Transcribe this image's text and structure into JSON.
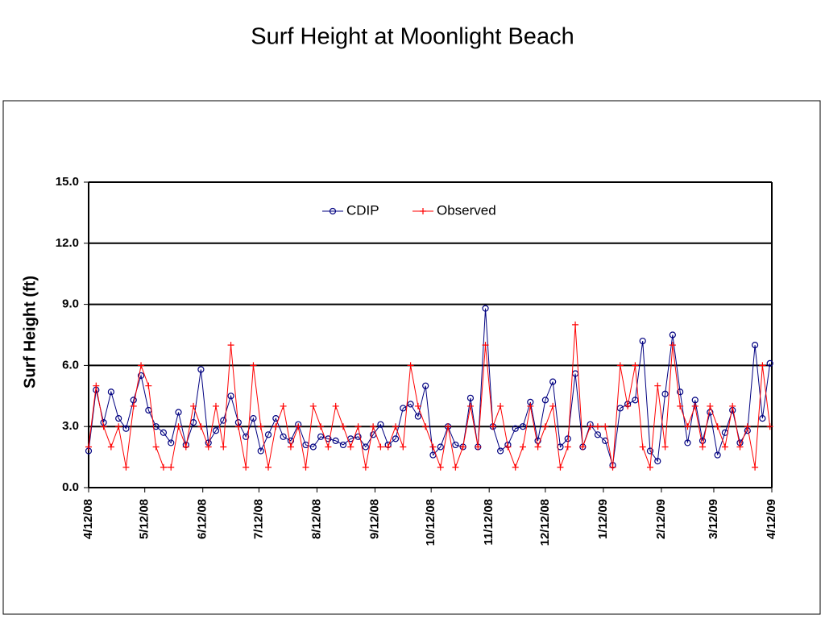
{
  "chart_data": {
    "type": "line",
    "title": "Surf Height at Moonlight Beach",
    "y_label": "Surf Height (ft)",
    "x": [
      "2008-04-12",
      "2008-04-16",
      "2008-04-20",
      "2008-04-24",
      "2008-04-28",
      "2008-05-02",
      "2008-05-06",
      "2008-05-10",
      "2008-05-14",
      "2008-05-18",
      "2008-05-22",
      "2008-05-26",
      "2008-05-30",
      "2008-06-03",
      "2008-06-07",
      "2008-06-11",
      "2008-06-15",
      "2008-06-19",
      "2008-06-23",
      "2008-06-27",
      "2008-07-01",
      "2008-07-05",
      "2008-07-09",
      "2008-07-13",
      "2008-07-17",
      "2008-07-21",
      "2008-07-25",
      "2008-07-29",
      "2008-08-02",
      "2008-08-06",
      "2008-08-10",
      "2008-08-14",
      "2008-08-18",
      "2008-08-22",
      "2008-08-26",
      "2008-08-30",
      "2008-09-03",
      "2008-09-07",
      "2008-09-11",
      "2008-09-15",
      "2008-09-19",
      "2008-09-23",
      "2008-09-27",
      "2008-10-01",
      "2008-10-05",
      "2008-10-09",
      "2008-10-13",
      "2008-10-17",
      "2008-10-21",
      "2008-10-25",
      "2008-10-29",
      "2008-11-02",
      "2008-11-06",
      "2008-11-10",
      "2008-11-14",
      "2008-11-18",
      "2008-11-22",
      "2008-11-26",
      "2008-11-30",
      "2008-12-04",
      "2008-12-08",
      "2008-12-12",
      "2008-12-16",
      "2008-12-20",
      "2008-12-24",
      "2008-12-28",
      "2009-01-01",
      "2009-01-05",
      "2009-01-09",
      "2009-01-13",
      "2009-01-17",
      "2009-01-21",
      "2009-01-25",
      "2009-01-29",
      "2009-02-02",
      "2009-02-06",
      "2009-02-10",
      "2009-02-14",
      "2009-02-18",
      "2009-02-22",
      "2009-02-26",
      "2009-03-02",
      "2009-03-06",
      "2009-03-10",
      "2009-03-14",
      "2009-03-18",
      "2009-03-22",
      "2009-03-26",
      "2009-03-30",
      "2009-04-03",
      "2009-04-07",
      "2009-04-11"
    ],
    "series": [
      {
        "name": "CDIP",
        "color": "#000080",
        "marker": "circle",
        "values": [
          1.8,
          4.8,
          3.2,
          4.7,
          3.4,
          2.9,
          4.3,
          5.5,
          3.8,
          3.0,
          2.7,
          2.2,
          3.7,
          2.1,
          3.2,
          5.8,
          2.2,
          2.8,
          3.3,
          4.5,
          3.2,
          2.5,
          3.4,
          1.8,
          2.6,
          3.4,
          2.5,
          2.3,
          3.1,
          2.1,
          2.0,
          2.5,
          2.4,
          2.3,
          2.1,
          2.4,
          2.5,
          2.0,
          2.6,
          3.1,
          2.1,
          2.4,
          3.9,
          4.1,
          3.5,
          5.0,
          1.6,
          2.0,
          3.0,
          2.1,
          2.0,
          4.4,
          2.0,
          8.8,
          3.0,
          1.8,
          2.1,
          2.9,
          3.0,
          4.2,
          2.3,
          4.3,
          5.2,
          2.0,
          2.4,
          5.6,
          2.0,
          3.1,
          2.6,
          2.3,
          1.1,
          3.9,
          4.1,
          4.3,
          7.2,
          1.8,
          1.3,
          4.6,
          7.5,
          4.7,
          2.2,
          4.3,
          2.3,
          3.7,
          1.6,
          2.7,
          3.8,
          2.2,
          2.8,
          7.0,
          3.4,
          6.1
        ]
      },
      {
        "name": "Observed",
        "color": "#ff0000",
        "marker": "plus",
        "values": [
          2,
          5,
          3,
          2,
          3,
          1,
          4,
          6,
          5,
          2,
          1,
          1,
          3,
          2,
          4,
          3,
          2,
          4,
          2,
          7,
          3,
          1,
          6,
          3,
          1,
          3,
          4,
          2,
          3,
          1,
          4,
          3,
          2,
          4,
          3,
          2,
          3,
          1,
          3,
          2,
          2,
          3,
          2,
          6,
          4,
          3,
          2,
          1,
          3,
          1,
          2,
          4,
          2,
          7,
          3,
          4,
          2,
          1,
          2,
          4,
          2,
          3,
          4,
          1,
          2,
          8,
          2,
          3,
          3,
          3,
          1,
          6,
          4,
          6,
          2,
          1,
          5,
          2,
          7,
          4,
          3,
          4,
          2,
          4,
          3,
          2,
          4,
          2,
          3,
          1,
          6,
          3
        ]
      }
    ],
    "xlim": [
      "2008-04-12",
      "2009-04-12"
    ],
    "xticks": [
      {
        "value": "2008-04-12",
        "label": "4/12/08"
      },
      {
        "value": "2008-05-12",
        "label": "5/12/08"
      },
      {
        "value": "2008-06-12",
        "label": "6/12/08"
      },
      {
        "value": "2008-07-12",
        "label": "7/12/08"
      },
      {
        "value": "2008-08-12",
        "label": "8/12/08"
      },
      {
        "value": "2008-09-12",
        "label": "9/12/08"
      },
      {
        "value": "2008-10-12",
        "label": "10/12/08"
      },
      {
        "value": "2008-11-12",
        "label": "11/12/08"
      },
      {
        "value": "2008-12-12",
        "label": "12/12/08"
      },
      {
        "value": "2009-01-12",
        "label": "1/12/09"
      },
      {
        "value": "2009-02-12",
        "label": "2/12/09"
      },
      {
        "value": "2009-03-12",
        "label": "3/12/09"
      },
      {
        "value": "2009-04-12",
        "label": "4/12/09"
      }
    ],
    "ylim": [
      0,
      15
    ],
    "yticks": [
      {
        "value": 0,
        "label": "0.0"
      },
      {
        "value": 3,
        "label": "3.0"
      },
      {
        "value": 6,
        "label": "6.0"
      },
      {
        "value": 9,
        "label": "9.0"
      },
      {
        "value": 12,
        "label": "12.0"
      },
      {
        "value": 15,
        "label": "15.0"
      }
    ],
    "grid": true,
    "legend": "top"
  }
}
